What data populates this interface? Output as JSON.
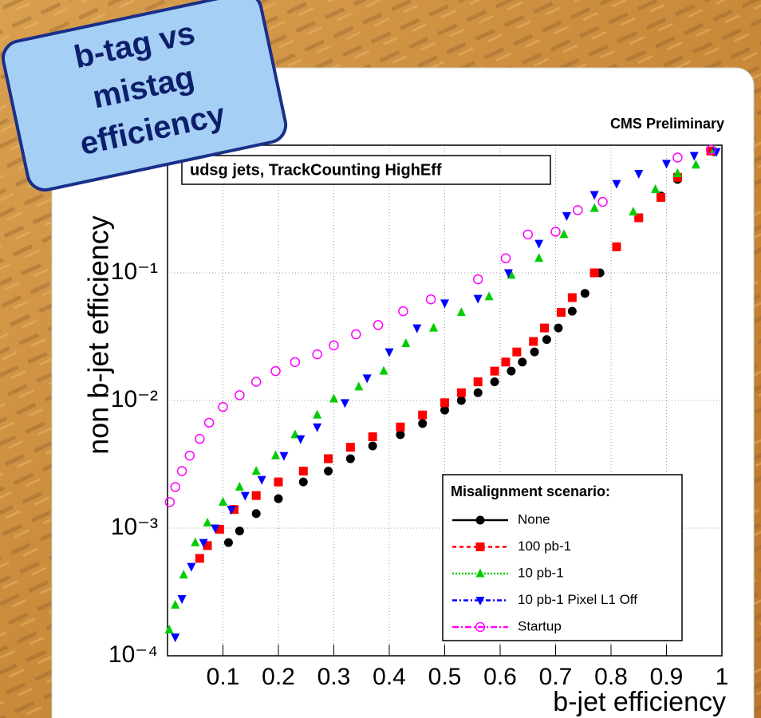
{
  "chart_data": {
    "type": "scatter",
    "title": [
      "b-tag vs",
      "mistag",
      "efficiency"
    ],
    "annotations": [
      "CMS Preliminary",
      "udsg jets, TrackCounting HighEff"
    ],
    "x_label": "b-jet efficiency",
    "y_label": "non b-jet efficiency",
    "legend_title": "Misalignment scenario:",
    "xlim": [
      0,
      1
    ],
    "xticks": [
      0.1,
      0.2,
      0.3,
      0.4,
      0.5,
      0.6,
      0.7,
      0.8,
      0.9,
      1
    ],
    "ylim": [
      0.0001,
      1
    ],
    "ylog": true,
    "yticks": [
      {
        "value": 0.0001,
        "label": "10⁻⁴"
      },
      {
        "value": 0.001,
        "label": "10⁻³"
      },
      {
        "value": 0.01,
        "label": "10⁻²"
      },
      {
        "value": 0.1,
        "label": "10⁻¹"
      }
    ],
    "grid": true,
    "series": [
      {
        "name": "None",
        "color": "#000000",
        "marker": "circle",
        "dash": "0",
        "x": [
          0.11,
          0.13,
          0.16,
          0.2,
          0.245,
          0.29,
          0.33,
          0.37,
          0.42,
          0.46,
          0.5,
          0.53,
          0.56,
          0.59,
          0.62,
          0.64,
          0.662,
          0.684,
          0.705,
          0.73,
          0.753,
          0.78,
          0.81,
          0.85,
          0.89,
          0.92,
          0.986
        ],
        "values": [
          0.00077,
          0.00095,
          0.0013,
          0.0017,
          0.0023,
          0.0028,
          0.0035,
          0.0044,
          0.0054,
          0.0066,
          0.0084,
          0.01,
          0.0115,
          0.014,
          0.017,
          0.02,
          0.024,
          0.03,
          0.037,
          0.05,
          0.069,
          0.1,
          0.16,
          0.27,
          0.4,
          0.54,
          0.89
        ]
      },
      {
        "name": "100 pb-1",
        "color": "#ff0000",
        "marker": "square",
        "dash": "5 4",
        "x": [
          0.058,
          0.072,
          0.094,
          0.12,
          0.16,
          0.2,
          0.245,
          0.29,
          0.33,
          0.37,
          0.42,
          0.46,
          0.5,
          0.53,
          0.56,
          0.59,
          0.61,
          0.63,
          0.66,
          0.68,
          0.71,
          0.73,
          0.77,
          0.81,
          0.85,
          0.89,
          0.92,
          0.98
        ],
        "values": [
          0.00058,
          0.00073,
          0.00098,
          0.0014,
          0.0018,
          0.0023,
          0.0028,
          0.0035,
          0.0043,
          0.0052,
          0.0062,
          0.0077,
          0.0096,
          0.0115,
          0.014,
          0.017,
          0.02,
          0.024,
          0.029,
          0.037,
          0.049,
          0.064,
          0.1,
          0.16,
          0.27,
          0.39,
          0.56,
          0.9
        ]
      },
      {
        "name": "10 pb-1",
        "color": "#00cc00",
        "marker": "triangle-up",
        "dash": "2 2",
        "x": [
          0.003,
          0.014,
          0.029,
          0.05,
          0.072,
          0.1,
          0.13,
          0.16,
          0.195,
          0.23,
          0.27,
          0.3,
          0.345,
          0.39,
          0.43,
          0.48,
          0.53,
          0.58,
          0.62,
          0.67,
          0.715,
          0.77,
          0.84,
          0.88,
          0.92,
          0.953,
          0.986
        ],
        "values": [
          0.00016,
          0.00025,
          0.00043,
          0.00077,
          0.0011,
          0.0016,
          0.0021,
          0.0028,
          0.0037,
          0.0054,
          0.0077,
          0.0103,
          0.0128,
          0.017,
          0.028,
          0.037,
          0.049,
          0.065,
          0.096,
          0.13,
          0.2,
          0.32,
          0.3,
          0.45,
          0.6,
          0.7,
          0.92
        ]
      },
      {
        "name": "10 pb-1 Pixel L1 Off",
        "color": "#0000ff",
        "marker": "triangle-down",
        "dash": "6 3 2 3",
        "x": [
          0.014,
          0.026,
          0.043,
          0.065,
          0.086,
          0.115,
          0.14,
          0.17,
          0.21,
          0.24,
          0.27,
          0.32,
          0.36,
          0.4,
          0.45,
          0.5,
          0.56,
          0.615,
          0.67,
          0.72,
          0.77,
          0.81,
          0.85,
          0.9,
          0.95,
          0.99
        ],
        "values": [
          0.00014,
          0.00028,
          0.0005,
          0.00077,
          0.001,
          0.0014,
          0.0018,
          0.0024,
          0.0037,
          0.005,
          0.0062,
          0.0096,
          0.015,
          0.024,
          0.037,
          0.058,
          0.063,
          0.1,
          0.17,
          0.28,
          0.41,
          0.5,
          0.6,
          0.72,
          0.83,
          0.89
        ]
      },
      {
        "name": "Startup",
        "color": "#ff00ff",
        "marker": "circle-open",
        "dash": "8 3 2 3",
        "x": [
          0.004,
          0.014,
          0.026,
          0.04,
          0.058,
          0.075,
          0.1,
          0.13,
          0.16,
          0.195,
          0.23,
          0.27,
          0.3,
          0.34,
          0.38,
          0.425,
          0.475,
          0.56,
          0.61,
          0.65,
          0.7,
          0.74,
          0.785,
          0.92,
          0.98
        ],
        "values": [
          0.0016,
          0.0021,
          0.0028,
          0.0037,
          0.005,
          0.0067,
          0.0089,
          0.011,
          0.014,
          0.017,
          0.02,
          0.023,
          0.027,
          0.033,
          0.039,
          0.05,
          0.062,
          0.089,
          0.13,
          0.2,
          0.21,
          0.31,
          0.36,
          0.8,
          0.92
        ]
      }
    ]
  }
}
